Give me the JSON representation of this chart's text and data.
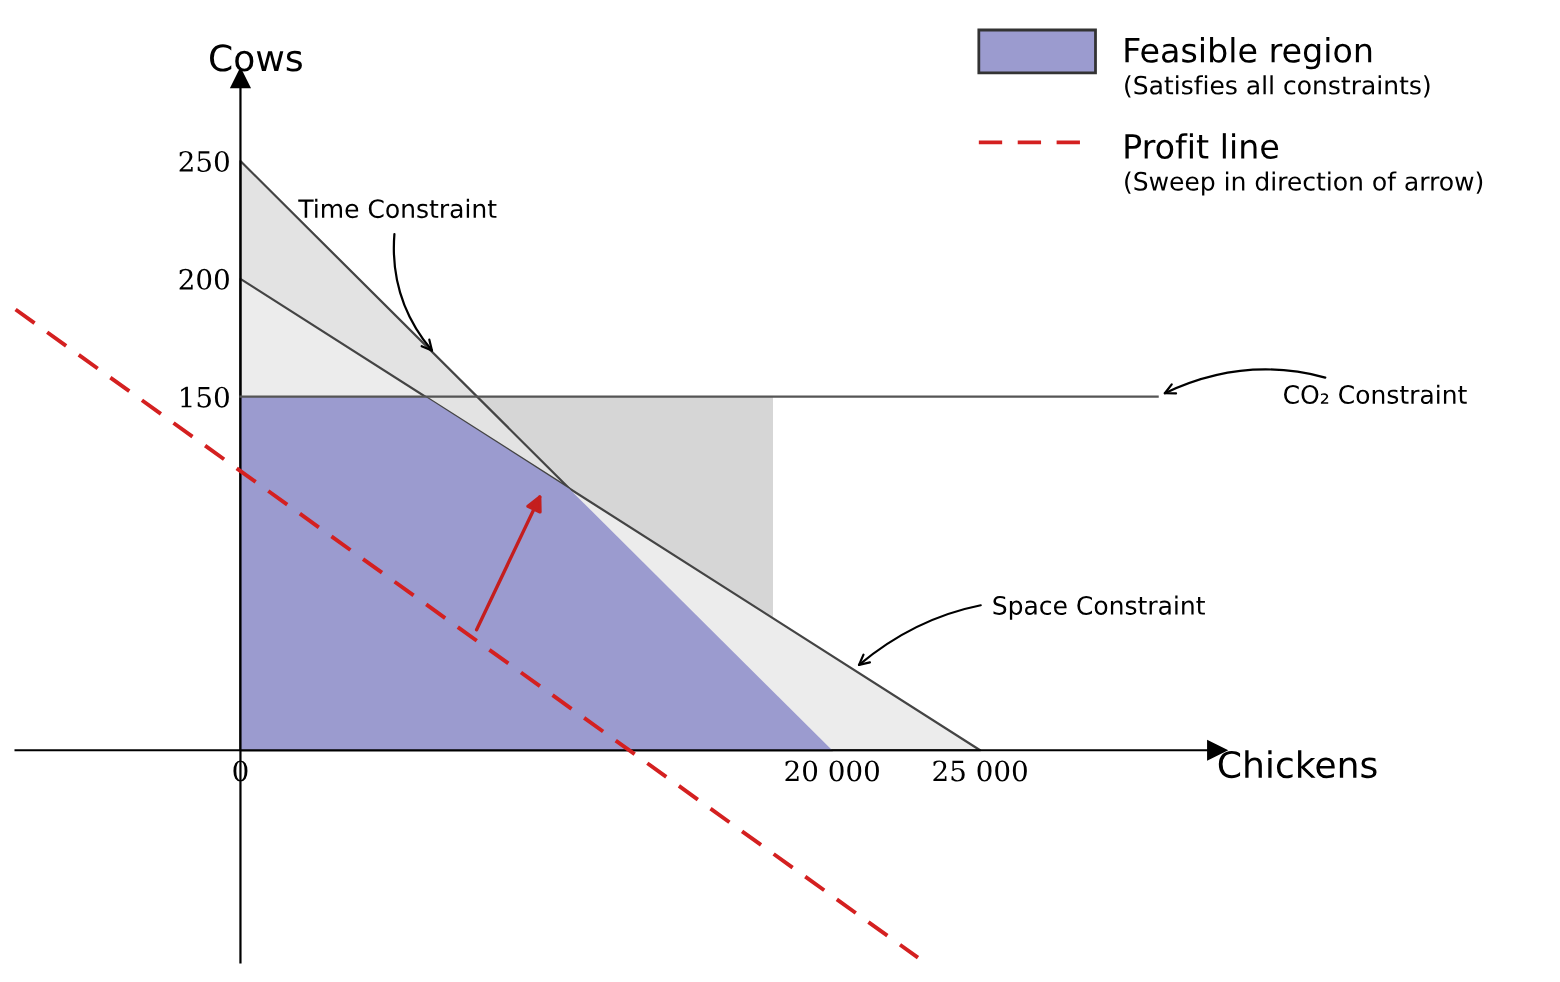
{
  "chart_data": {
    "type": "area",
    "xlabel": "Chickens",
    "ylabel": "Cows",
    "xlim": [
      -7600,
      33000
    ],
    "ylim": [
      -90,
      285
    ],
    "xticks": [
      {
        "value": 0,
        "label": "0"
      },
      {
        "value": 20000,
        "label": "20 000"
      },
      {
        "value": 25000,
        "label": "25 000"
      }
    ],
    "yticks": [
      150,
      200,
      250
    ],
    "series": [
      {
        "color": "#d6d6d6",
        "x": [
          0,
          18000
        ],
        "values": [
          150,
          150
        ]
      },
      {
        "color": "#e3e3e3",
        "x": [
          0,
          20000
        ],
        "values": [
          250,
          0
        ]
      },
      {
        "color": "#ececec",
        "x": [
          0,
          25000
        ],
        "values": [
          200,
          0
        ]
      },
      {
        "type": "line",
        "color": "#555555",
        "x": [
          0,
          31000
        ],
        "values": [
          150,
          150
        ]
      },
      {
        "name": "Feasible region",
        "color": "#9b9bcf",
        "x": [
          0,
          6250,
          11111,
          20000
        ],
        "values": [
          150,
          150,
          111,
          0
        ]
      },
      {
        "type": "line",
        "name": "Profit line",
        "color": "#d42020",
        "line_style": "dashed",
        "x": [
          -7600,
          22900
        ],
        "values": [
          187,
          -88
        ]
      }
    ],
    "annotations": [
      {
        "text": "Time Constraint",
        "x": 6650,
        "y": 167
      },
      {
        "text": "Space Constraint",
        "x": 20700,
        "y": 34
      },
      "(Satisfies all constraints)",
      "(Sweep in direction of arrow)",
      "CO₂ Constraint"
    ],
    "legend": "top right",
    "grid": false
  }
}
